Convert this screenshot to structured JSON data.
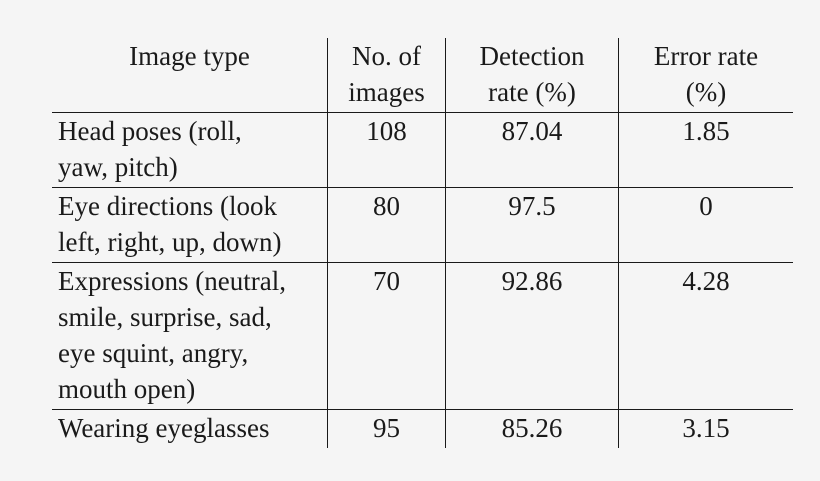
{
  "table": {
    "headers": [
      "Image type",
      "No. of images",
      "Detection rate (%)",
      "Error rate (%)"
    ],
    "header_lines": [
      [
        "Image type",
        ""
      ],
      [
        "No. of",
        "images"
      ],
      [
        "Detection",
        "rate (%)"
      ],
      [
        "Error rate",
        "(%)"
      ]
    ],
    "rows": [
      {
        "type_lines": [
          "Head poses (roll,",
          "yaw, pitch)"
        ],
        "count": "108",
        "detection": "87.04",
        "error": "1.85"
      },
      {
        "type_lines": [
          "Eye directions (look",
          "left, right, up, down)"
        ],
        "count": "80",
        "detection": "97.5",
        "error": "0"
      },
      {
        "type_lines": [
          "Expressions (neutral,",
          "smile, surprise, sad,",
          "eye squint, angry,",
          "mouth open)"
        ],
        "count": "70",
        "detection": "92.86",
        "error": "4.28"
      },
      {
        "type_lines": [
          "Wearing eyeglasses"
        ],
        "count": "95",
        "detection": "85.26",
        "error": "3.15"
      }
    ]
  }
}
